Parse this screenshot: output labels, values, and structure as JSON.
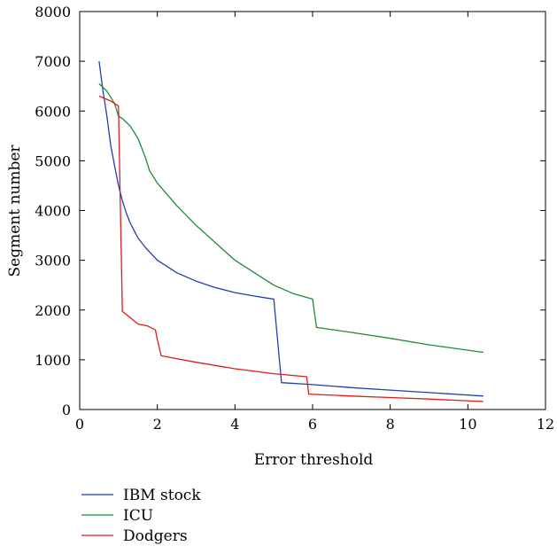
{
  "chart_data": {
    "type": "line",
    "xlabel": "Error threshold",
    "ylabel": "Segment number",
    "xlim": [
      0,
      12
    ],
    "ylim": [
      0,
      8000
    ],
    "xticks": [
      0,
      2,
      4,
      6,
      8,
      10,
      12
    ],
    "yticks": [
      0,
      1000,
      2000,
      3000,
      4000,
      5000,
      6000,
      7000,
      8000
    ],
    "grid": false,
    "legend_position": "bottom-left, below plot",
    "series": [
      {
        "name": "IBM stock",
        "color": "#1f3fb0",
        "x": [
          0.5,
          0.6,
          0.7,
          0.8,
          0.9,
          1.0,
          1.1,
          1.2,
          1.3,
          1.4,
          1.5,
          1.7,
          2.0,
          2.5,
          3.0,
          3.5,
          4.0,
          4.5,
          4.9,
          5.0,
          5.2,
          6.0,
          7.0,
          8.0,
          9.0,
          10.4
        ],
        "y": [
          7000,
          6400,
          5900,
          5300,
          4900,
          4500,
          4200,
          3950,
          3750,
          3600,
          3450,
          3250,
          3000,
          2750,
          2580,
          2450,
          2350,
          2280,
          2230,
          2220,
          540,
          500,
          440,
          390,
          340,
          270
        ]
      },
      {
        "name": "ICU",
        "color": "#1f8a3a",
        "x": [
          0.5,
          0.7,
          0.9,
          1.0,
          1.1,
          1.3,
          1.5,
          1.7,
          1.8,
          2.0,
          2.5,
          3.0,
          3.5,
          4.0,
          4.5,
          5.0,
          5.5,
          6.0,
          6.1,
          7.0,
          8.0,
          9.0,
          10.4
        ],
        "y": [
          6550,
          6400,
          6150,
          5900,
          5850,
          5700,
          5450,
          5050,
          4800,
          4550,
          4100,
          3700,
          3350,
          3000,
          2750,
          2500,
          2330,
          2220,
          1650,
          1550,
          1430,
          1300,
          1150
        ]
      },
      {
        "name": "Dodgers",
        "color": "#e11b1b",
        "x": [
          0.5,
          0.8,
          1.0,
          1.05,
          1.1,
          1.3,
          1.5,
          1.75,
          1.95,
          2.0,
          2.1,
          3.0,
          4.0,
          5.0,
          5.85,
          5.9,
          7.0,
          8.0,
          9.0,
          10.4
        ],
        "y": [
          6300,
          6200,
          6100,
          4000,
          1970,
          1850,
          1720,
          1680,
          1600,
          1400,
          1080,
          950,
          820,
          720,
          660,
          310,
          270,
          240,
          210,
          160
        ]
      }
    ]
  }
}
